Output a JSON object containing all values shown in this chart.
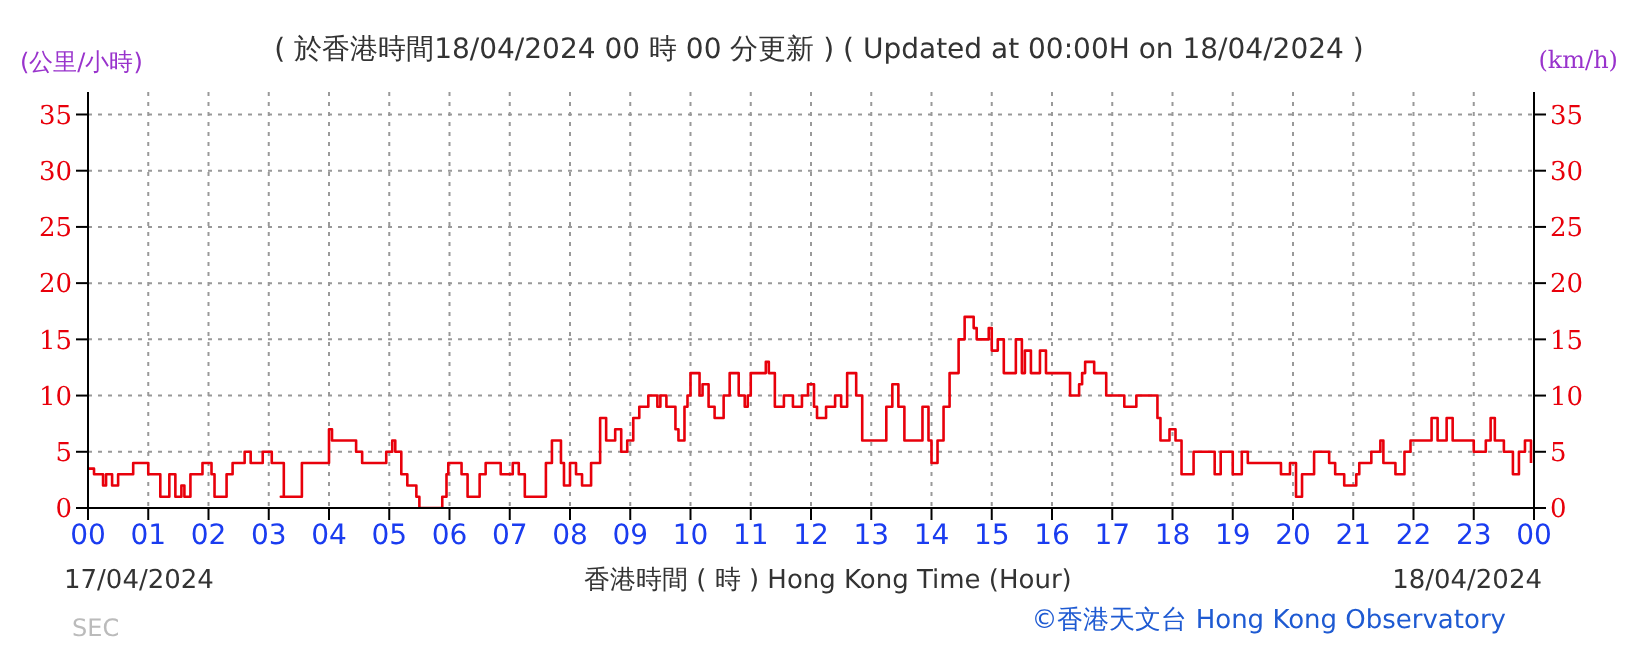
{
  "chart_data": {
    "type": "step",
    "title": "( 於香港時間18/04/2024 00 時 00 分更新 ) ( Updated at 00:00H on 18/04/2024 )",
    "xlabel": "香港時間 ( 時 ) Hong Kong Time (Hour)",
    "ylabel": "(公里/小時)",
    "y2label": "(km/h)",
    "annotations": [
      "17/04/2024",
      "18/04/2024",
      "©香港天文台 Hong Kong Observatory",
      "SEC"
    ],
    "x": [
      0,
      0.1,
      0.25,
      0.3,
      0.4,
      0.5,
      0.75,
      1.0,
      1.2,
      1.35,
      1.45,
      1.55,
      1.6,
      1.7,
      1.9,
      2.05,
      2.1,
      2.3,
      2.4,
      2.6,
      2.7,
      2.9,
      3.05,
      3.25,
      3.2,
      3.3,
      3.55,
      4.0,
      4.05,
      4.45,
      4.55,
      4.95,
      5.05,
      5.1,
      5.2,
      5.3,
      5.45,
      5.5,
      5.88,
      5.95,
      5.98,
      6.2,
      6.3,
      6.5,
      6.6,
      6.85,
      7.05,
      7.15,
      7.25,
      7.6,
      7.7,
      7.85,
      7.9,
      8.0,
      8.1,
      8.2,
      8.35,
      8.5,
      8.6,
      8.75,
      8.85,
      8.95,
      9.05,
      9.15,
      9.3,
      9.45,
      9.5,
      9.6,
      9.75,
      9.8,
      9.9,
      9.95,
      10.0,
      10.15,
      10.2,
      10.3,
      10.4,
      10.55,
      10.65,
      10.8,
      10.9,
      10.95,
      11.0,
      11.25,
      11.3,
      11.4,
      11.55,
      11.7,
      11.85,
      11.95,
      12.05,
      12.1,
      12.25,
      12.4,
      12.5,
      12.6,
      12.75,
      12.85,
      13.25,
      13.35,
      13.45,
      13.55,
      13.85,
      13.95,
      14.0,
      14.1,
      14.2,
      14.3,
      14.45,
      14.55,
      14.7,
      14.75,
      14.95,
      15.0,
      15.1,
      15.2,
      15.4,
      15.5,
      15.55,
      15.65,
      15.8,
      15.9,
      16.3,
      16.45,
      16.5,
      16.55,
      16.7,
      16.9,
      17.2,
      17.4,
      17.75,
      17.8,
      17.95,
      18.05,
      18.15,
      18.35,
      18.7,
      18.8,
      19.0,
      19.15,
      19.25,
      19.8,
      19.95,
      20.05,
      20.15,
      20.35,
      20.6,
      20.7,
      20.85,
      21.05,
      21.1,
      21.3,
      21.45,
      21.5,
      21.7,
      21.85,
      21.95,
      22.3,
      22.4,
      22.55,
      22.65,
      23.0,
      23.2,
      23.28,
      23.35,
      23.5,
      23.65,
      23.75,
      23.85,
      23.95
    ],
    "series": [
      {
        "color": "#e8000b",
        "values": [
          3.5,
          3,
          2,
          3,
          2,
          3,
          4,
          3,
          1,
          3,
          1,
          2,
          1,
          3,
          4,
          3,
          1,
          3,
          4,
          5,
          4,
          5,
          4,
          1,
          1,
          1,
          4,
          7,
          6,
          5,
          4,
          5,
          6,
          5,
          3,
          2,
          1,
          0,
          1,
          3,
          4,
          3,
          1,
          3,
          4,
          3,
          4,
          3,
          1,
          4,
          6,
          4,
          2,
          4,
          3,
          2,
          4,
          8,
          6,
          7,
          5,
          6,
          8,
          9,
          10,
          9,
          10,
          9,
          7,
          6,
          9,
          10,
          12,
          10,
          11,
          9,
          8,
          10,
          12,
          10,
          9,
          10,
          12,
          13,
          12,
          9,
          10,
          9,
          10,
          11,
          9,
          8,
          9,
          10,
          9,
          12,
          10,
          6,
          9,
          11,
          9,
          6,
          9,
          6,
          4,
          6,
          9,
          12,
          15,
          17,
          16,
          15,
          16,
          14,
          15,
          12,
          15,
          12,
          14,
          12,
          14,
          12,
          10,
          11,
          12,
          13,
          12,
          10,
          9,
          10,
          8,
          6,
          7,
          6,
          3,
          5,
          3,
          5,
          3,
          5,
          4,
          3,
          4,
          1,
          3,
          5,
          4,
          3,
          2,
          3,
          4,
          5,
          6,
          4,
          3,
          5,
          6,
          8,
          6,
          8,
          6,
          5,
          6,
          8,
          6,
          5,
          3,
          5,
          6,
          4
        ]
      }
    ],
    "xlim": [
      0,
      24
    ],
    "xticks": [
      {
        "value": 0,
        "label": "00"
      },
      {
        "value": 1,
        "label": "01"
      },
      {
        "value": 2,
        "label": "02"
      },
      {
        "value": 3,
        "label": "03"
      },
      {
        "value": 4,
        "label": "04"
      },
      {
        "value": 5,
        "label": "05"
      },
      {
        "value": 6,
        "label": "06"
      },
      {
        "value": 7,
        "label": "07"
      },
      {
        "value": 8,
        "label": "08"
      },
      {
        "value": 9,
        "label": "09"
      },
      {
        "value": 10,
        "label": "10"
      },
      {
        "value": 11,
        "label": "11"
      },
      {
        "value": 12,
        "label": "12"
      },
      {
        "value": 13,
        "label": "13"
      },
      {
        "value": 14,
        "label": "14"
      },
      {
        "value": 15,
        "label": "15"
      },
      {
        "value": 16,
        "label": "16"
      },
      {
        "value": 17,
        "label": "17"
      },
      {
        "value": 18,
        "label": "18"
      },
      {
        "value": 19,
        "label": "19"
      },
      {
        "value": 20,
        "label": "20"
      },
      {
        "value": 21,
        "label": "21"
      },
      {
        "value": 22,
        "label": "22"
      },
      {
        "value": 23,
        "label": "23"
      },
      {
        "value": 24,
        "label": "00"
      }
    ],
    "ylim": [
      0,
      37
    ],
    "yticks": [
      0,
      5,
      10,
      15,
      20,
      25,
      30,
      35
    ],
    "y2lim": [
      0,
      37
    ],
    "y2ticks": [
      0,
      5,
      10,
      15,
      20,
      25,
      30,
      35
    ],
    "grid": true
  }
}
